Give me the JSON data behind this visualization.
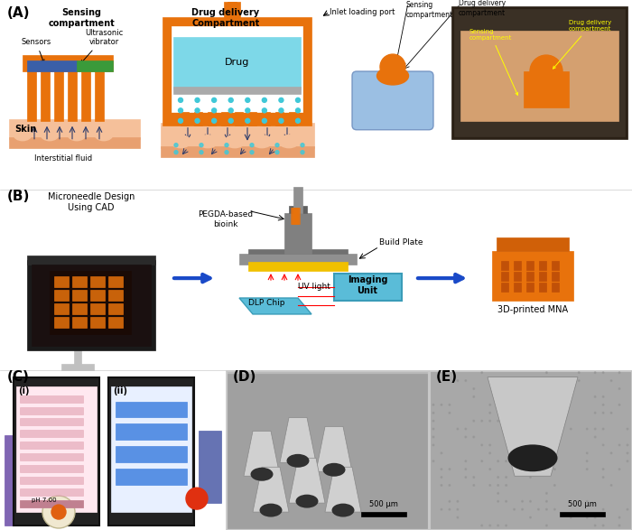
{
  "title": "",
  "bg_color": "#ffffff",
  "panel_A_label": "(A)",
  "panel_B_label": "(B)",
  "panel_C_label": "(C)",
  "panel_D_label": "(D)",
  "panel_E_label": "(E)",
  "orange_color": "#E8720C",
  "skin_color": "#F5C09A",
  "skin_dark": "#E8A070",
  "drug_color": "#7DD8E8",
  "blue_sensor": "#3A5FA8",
  "green_sensor": "#3A9A3A",
  "gray_vibrator": "#AAAAAA",
  "cyan_dots": "#40C8D8",
  "arrow_color": "#2A3A6A",
  "photo_bg": "#3A3020",
  "monitor_bg": "#1A1A1A",
  "monitor_screen": "#000010",
  "dlp_color": "#5ABCD8",
  "imaging_color": "#5ABCD8",
  "arrow_blue": "#1A4AC8"
}
